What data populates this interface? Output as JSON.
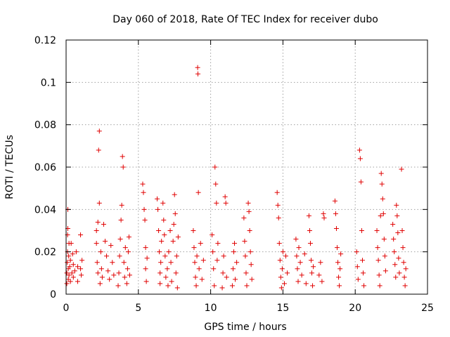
{
  "chart_data": {
    "type": "scatter",
    "title": "Day 060 of 2018, Rate Of TEC Index for receiver dubo",
    "xlabel": "GPS time / hours",
    "ylabel": "ROTI / TECUs",
    "xlim": [
      0,
      25
    ],
    "ylim": [
      0,
      0.12
    ],
    "x_ticks": [
      0,
      5,
      10,
      15,
      20,
      25
    ],
    "x_tick_labels": [
      "0",
      "5",
      "10",
      "15",
      "20",
      "25"
    ],
    "y_ticks": [
      0,
      0.02,
      0.04,
      0.06,
      0.08,
      0.1,
      0.12
    ],
    "y_tick_labels": [
      "0",
      "0.02",
      "0.04",
      "0.06",
      "0.08",
      "0.1",
      "0.12"
    ],
    "grid": true,
    "marker": "plus",
    "color": "#e00000",
    "series": [
      {
        "points": [
          [
            0.05,
            0.005
          ],
          [
            0.05,
            0.01
          ],
          [
            0.08,
            0.015
          ],
          [
            0.1,
            0.02
          ],
          [
            0.1,
            0.028
          ],
          [
            0.12,
            0.031
          ],
          [
            0.12,
            0.04
          ],
          [
            0.15,
            0.007
          ],
          [
            0.15,
            0.012
          ],
          [
            0.18,
            0.018
          ],
          [
            0.2,
            0.024
          ],
          [
            0.2,
            0.009
          ],
          [
            0.25,
            0.013
          ],
          [
            0.3,
            0.006
          ],
          [
            0.3,
            0.016
          ],
          [
            0.35,
            0.024
          ],
          [
            0.4,
            0.01
          ],
          [
            0.45,
            0.019
          ],
          [
            0.5,
            0.008
          ],
          [
            0.5,
            0.014
          ],
          [
            0.6,
            0.011
          ],
          [
            0.7,
            0.02
          ],
          [
            0.8,
            0.013
          ],
          [
            0.8,
            0.006
          ],
          [
            1.0,
            0.012
          ],
          [
            1.0,
            0.028
          ],
          [
            1.05,
            0.009
          ],
          [
            1.1,
            0.016
          ],
          [
            2.1,
            0.03
          ],
          [
            2.1,
            0.024
          ],
          [
            2.15,
            0.015
          ],
          [
            2.2,
            0.01
          ],
          [
            2.2,
            0.034
          ],
          [
            2.25,
            0.068
          ],
          [
            2.3,
            0.077
          ],
          [
            2.3,
            0.043
          ],
          [
            2.35,
            0.005
          ],
          [
            2.4,
            0.02
          ],
          [
            2.45,
            0.012
          ],
          [
            2.5,
            0.008
          ],
          [
            2.6,
            0.033
          ],
          [
            2.7,
            0.025
          ],
          [
            2.8,
            0.018
          ],
          [
            2.9,
            0.011
          ],
          [
            3.0,
            0.007
          ],
          [
            3.1,
            0.023
          ],
          [
            3.2,
            0.015
          ],
          [
            3.3,
            0.009
          ],
          [
            3.6,
            0.004
          ],
          [
            3.65,
            0.01
          ],
          [
            3.7,
            0.018
          ],
          [
            3.75,
            0.026
          ],
          [
            3.8,
            0.035
          ],
          [
            3.85,
            0.042
          ],
          [
            3.9,
            0.065
          ],
          [
            3.95,
            0.06
          ],
          [
            4.0,
            0.015
          ],
          [
            4.05,
            0.008
          ],
          [
            4.1,
            0.022
          ],
          [
            4.2,
            0.005
          ],
          [
            4.25,
            0.012
          ],
          [
            4.3,
            0.02
          ],
          [
            4.35,
            0.027
          ],
          [
            4.4,
            0.009
          ],
          [
            5.3,
            0.052
          ],
          [
            5.35,
            0.048
          ],
          [
            5.4,
            0.04
          ],
          [
            5.45,
            0.035
          ],
          [
            5.5,
            0.022
          ],
          [
            5.5,
            0.012
          ],
          [
            5.55,
            0.006
          ],
          [
            5.6,
            0.017
          ],
          [
            6.3,
            0.045
          ],
          [
            6.35,
            0.04
          ],
          [
            6.4,
            0.03
          ],
          [
            6.45,
            0.02
          ],
          [
            6.5,
            0.01
          ],
          [
            6.5,
            0.005
          ],
          [
            6.55,
            0.015
          ],
          [
            6.6,
            0.025
          ],
          [
            6.7,
            0.043
          ],
          [
            6.75,
            0.035
          ],
          [
            6.8,
            0.028
          ],
          [
            6.85,
            0.018
          ],
          [
            6.9,
            0.008
          ],
          [
            7.0,
            0.012
          ],
          [
            7.05,
            0.004
          ],
          [
            7.1,
            0.02
          ],
          [
            7.2,
            0.03
          ],
          [
            7.25,
            0.015
          ],
          [
            7.3,
            0.006
          ],
          [
            7.4,
            0.025
          ],
          [
            7.45,
            0.033
          ],
          [
            7.5,
            0.047
          ],
          [
            7.55,
            0.038
          ],
          [
            7.6,
            0.01
          ],
          [
            7.65,
            0.018
          ],
          [
            7.7,
            0.003
          ],
          [
            7.75,
            0.027
          ],
          [
            8.8,
            0.03
          ],
          [
            8.85,
            0.022
          ],
          [
            8.9,
            0.015
          ],
          [
            8.95,
            0.008
          ],
          [
            9.0,
            0.004
          ],
          [
            9.05,
            0.018
          ],
          [
            9.1,
            0.107
          ],
          [
            9.12,
            0.104
          ],
          [
            9.15,
            0.048
          ],
          [
            9.2,
            0.012
          ],
          [
            9.3,
            0.024
          ],
          [
            9.4,
            0.007
          ],
          [
            9.5,
            0.016
          ],
          [
            10.1,
            0.028
          ],
          [
            10.15,
            0.02
          ],
          [
            10.2,
            0.012
          ],
          [
            10.25,
            0.004
          ],
          [
            10.3,
            0.06
          ],
          [
            10.35,
            0.052
          ],
          [
            10.4,
            0.043
          ],
          [
            10.45,
            0.016
          ],
          [
            10.5,
            0.024
          ],
          [
            10.8,
            0.003
          ],
          [
            10.85,
            0.01
          ],
          [
            10.9,
            0.018
          ],
          [
            11.0,
            0.046
          ],
          [
            11.05,
            0.043
          ],
          [
            11.1,
            0.008
          ],
          [
            11.5,
            0.004
          ],
          [
            11.55,
            0.012
          ],
          [
            11.6,
            0.02
          ],
          [
            11.65,
            0.024
          ],
          [
            11.7,
            0.007
          ],
          [
            11.8,
            0.015
          ],
          [
            12.3,
            0.036
          ],
          [
            12.35,
            0.025
          ],
          [
            12.4,
            0.018
          ],
          [
            12.45,
            0.01
          ],
          [
            12.5,
            0.004
          ],
          [
            12.6,
            0.043
          ],
          [
            12.65,
            0.039
          ],
          [
            12.7,
            0.03
          ],
          [
            12.75,
            0.02
          ],
          [
            12.8,
            0.014
          ],
          [
            12.85,
            0.007
          ],
          [
            14.6,
            0.048
          ],
          [
            14.65,
            0.042
          ],
          [
            14.7,
            0.036
          ],
          [
            14.75,
            0.024
          ],
          [
            14.8,
            0.016
          ],
          [
            14.85,
            0.008
          ],
          [
            14.9,
            0.003
          ],
          [
            14.95,
            0.012
          ],
          [
            15.0,
            0.02
          ],
          [
            15.1,
            0.005
          ],
          [
            15.2,
            0.018
          ],
          [
            15.3,
            0.01
          ],
          [
            15.9,
            0.026
          ],
          [
            15.95,
            0.018
          ],
          [
            16.0,
            0.012
          ],
          [
            16.05,
            0.006
          ],
          [
            16.1,
            0.022
          ],
          [
            16.2,
            0.015
          ],
          [
            16.3,
            0.009
          ],
          [
            16.5,
            0.019
          ],
          [
            16.6,
            0.005
          ],
          [
            16.8,
            0.037
          ],
          [
            16.85,
            0.03
          ],
          [
            16.9,
            0.024
          ],
          [
            16.95,
            0.016
          ],
          [
            17.0,
            0.01
          ],
          [
            17.05,
            0.004
          ],
          [
            17.1,
            0.013
          ],
          [
            17.5,
            0.009
          ],
          [
            17.6,
            0.015
          ],
          [
            17.7,
            0.006
          ],
          [
            17.8,
            0.038
          ],
          [
            17.85,
            0.036
          ],
          [
            18.6,
            0.044
          ],
          [
            18.65,
            0.038
          ],
          [
            18.7,
            0.031
          ],
          [
            18.75,
            0.022
          ],
          [
            18.8,
            0.015
          ],
          [
            18.85,
            0.008
          ],
          [
            18.9,
            0.004
          ],
          [
            18.95,
            0.012
          ],
          [
            19.0,
            0.019
          ],
          [
            20.1,
            0.02
          ],
          [
            20.15,
            0.013
          ],
          [
            20.2,
            0.007
          ],
          [
            20.3,
            0.068
          ],
          [
            20.35,
            0.064
          ],
          [
            20.4,
            0.053
          ],
          [
            20.45,
            0.03
          ],
          [
            20.5,
            0.016
          ],
          [
            20.55,
            0.01
          ],
          [
            20.6,
            0.004
          ],
          [
            21.5,
            0.03
          ],
          [
            21.55,
            0.022
          ],
          [
            21.6,
            0.016
          ],
          [
            21.65,
            0.009
          ],
          [
            21.7,
            0.004
          ],
          [
            21.75,
            0.037
          ],
          [
            21.8,
            0.057
          ],
          [
            21.85,
            0.052
          ],
          [
            21.9,
            0.045
          ],
          [
            21.95,
            0.038
          ],
          [
            22.0,
            0.026
          ],
          [
            22.05,
            0.018
          ],
          [
            22.1,
            0.011
          ],
          [
            22.6,
            0.033
          ],
          [
            22.65,
            0.026
          ],
          [
            22.7,
            0.02
          ],
          [
            22.75,
            0.014
          ],
          [
            22.8,
            0.008
          ],
          [
            22.85,
            0.042
          ],
          [
            22.9,
            0.037
          ],
          [
            22.95,
            0.029
          ],
          [
            23.0,
            0.017
          ],
          [
            23.05,
            0.01
          ],
          [
            23.2,
            0.059
          ],
          [
            23.25,
            0.03
          ],
          [
            23.3,
            0.022
          ],
          [
            23.35,
            0.015
          ],
          [
            23.4,
            0.008
          ],
          [
            23.45,
            0.004
          ],
          [
            23.5,
            0.012
          ]
        ]
      }
    ]
  }
}
